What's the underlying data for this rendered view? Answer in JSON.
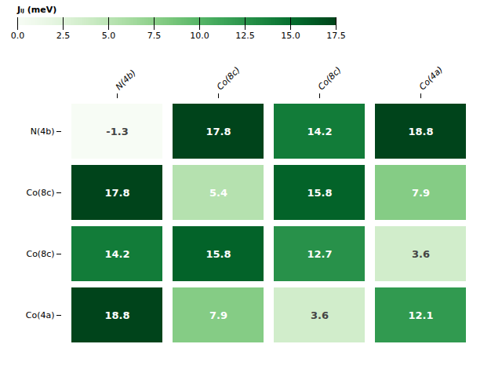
{
  "chart_data": {
    "type": "heatmap",
    "categories": [
      "N(4b)",
      "Co(8c)",
      "Co(8c)",
      "Co(4a)"
    ],
    "matrix": [
      [
        -1.3,
        17.8,
        14.2,
        18.8
      ],
      [
        17.8,
        5.4,
        15.8,
        7.9
      ],
      [
        14.2,
        15.8,
        12.7,
        3.6
      ],
      [
        18.8,
        7.9,
        3.6,
        12.1
      ]
    ],
    "color": "Greens",
    "colorbar_label": "Jᵢⱼ (meV)",
    "colorbar_range": [
      0.0,
      17.5
    ],
    "colorbar_ticks": [
      {
        "value": 0.0,
        "label": "0.0"
      },
      2.5,
      {
        "value": 5.0,
        "label": "5.0"
      },
      7.5,
      {
        "value": 10.0,
        "label": "10.0"
      },
      12.5,
      {
        "value": 15.0,
        "label": "15.0"
      },
      17.5
    ],
    "data_labels": true
  }
}
